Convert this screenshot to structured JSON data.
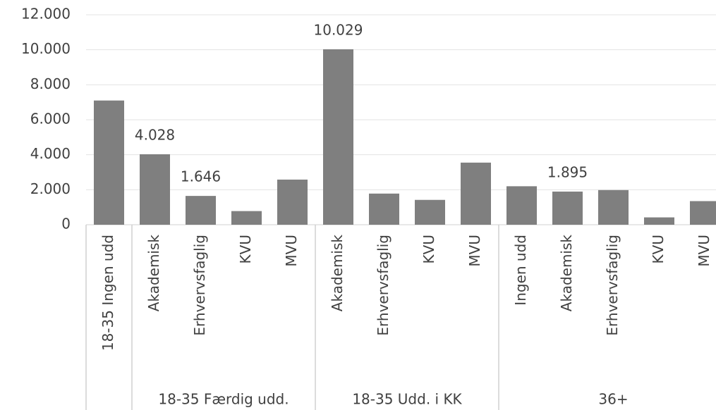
{
  "chart_data": {
    "type": "bar",
    "groups": [
      {
        "name": null,
        "categories": [
          "18-35 Ingen udd"
        ]
      },
      {
        "name": "18-35 Færdig udd.",
        "categories": [
          "Akademisk",
          "Erhvervsfaglig",
          "KVU",
          "MVU"
        ]
      },
      {
        "name": "18-35 Udd. i KK",
        "categories": [
          "Akademisk",
          "Erhvervsfaglig",
          "KVU",
          "MVU"
        ]
      },
      {
        "name": "36+",
        "categories": [
          "Ingen udd",
          "Akademisk",
          "Erhvervsfaglig",
          "KVU",
          "MVU"
        ]
      }
    ],
    "values": [
      7100,
      4028,
      1646,
      780,
      2580,
      10029,
      1780,
      1420,
      3550,
      2200,
      1895,
      1980,
      420,
      1350
    ],
    "value_labels": [
      null,
      "4.028",
      "1.646",
      null,
      null,
      "10.029",
      null,
      null,
      null,
      null,
      "1.895",
      null,
      null,
      null
    ],
    "color": "#7f7f7f",
    "ylim": [
      0,
      12000
    ],
    "yticks": [
      0,
      {
        "value": 2000,
        "label": "2.000"
      },
      {
        "value": 4000,
        "label": "4.000"
      },
      {
        "value": 6000,
        "label": "6.000"
      },
      {
        "value": 8000,
        "label": "8.000"
      },
      {
        "value": 10000,
        "label": "10.000"
      },
      {
        "value": 12000,
        "label": "12.000"
      }
    ],
    "grid": true
  }
}
